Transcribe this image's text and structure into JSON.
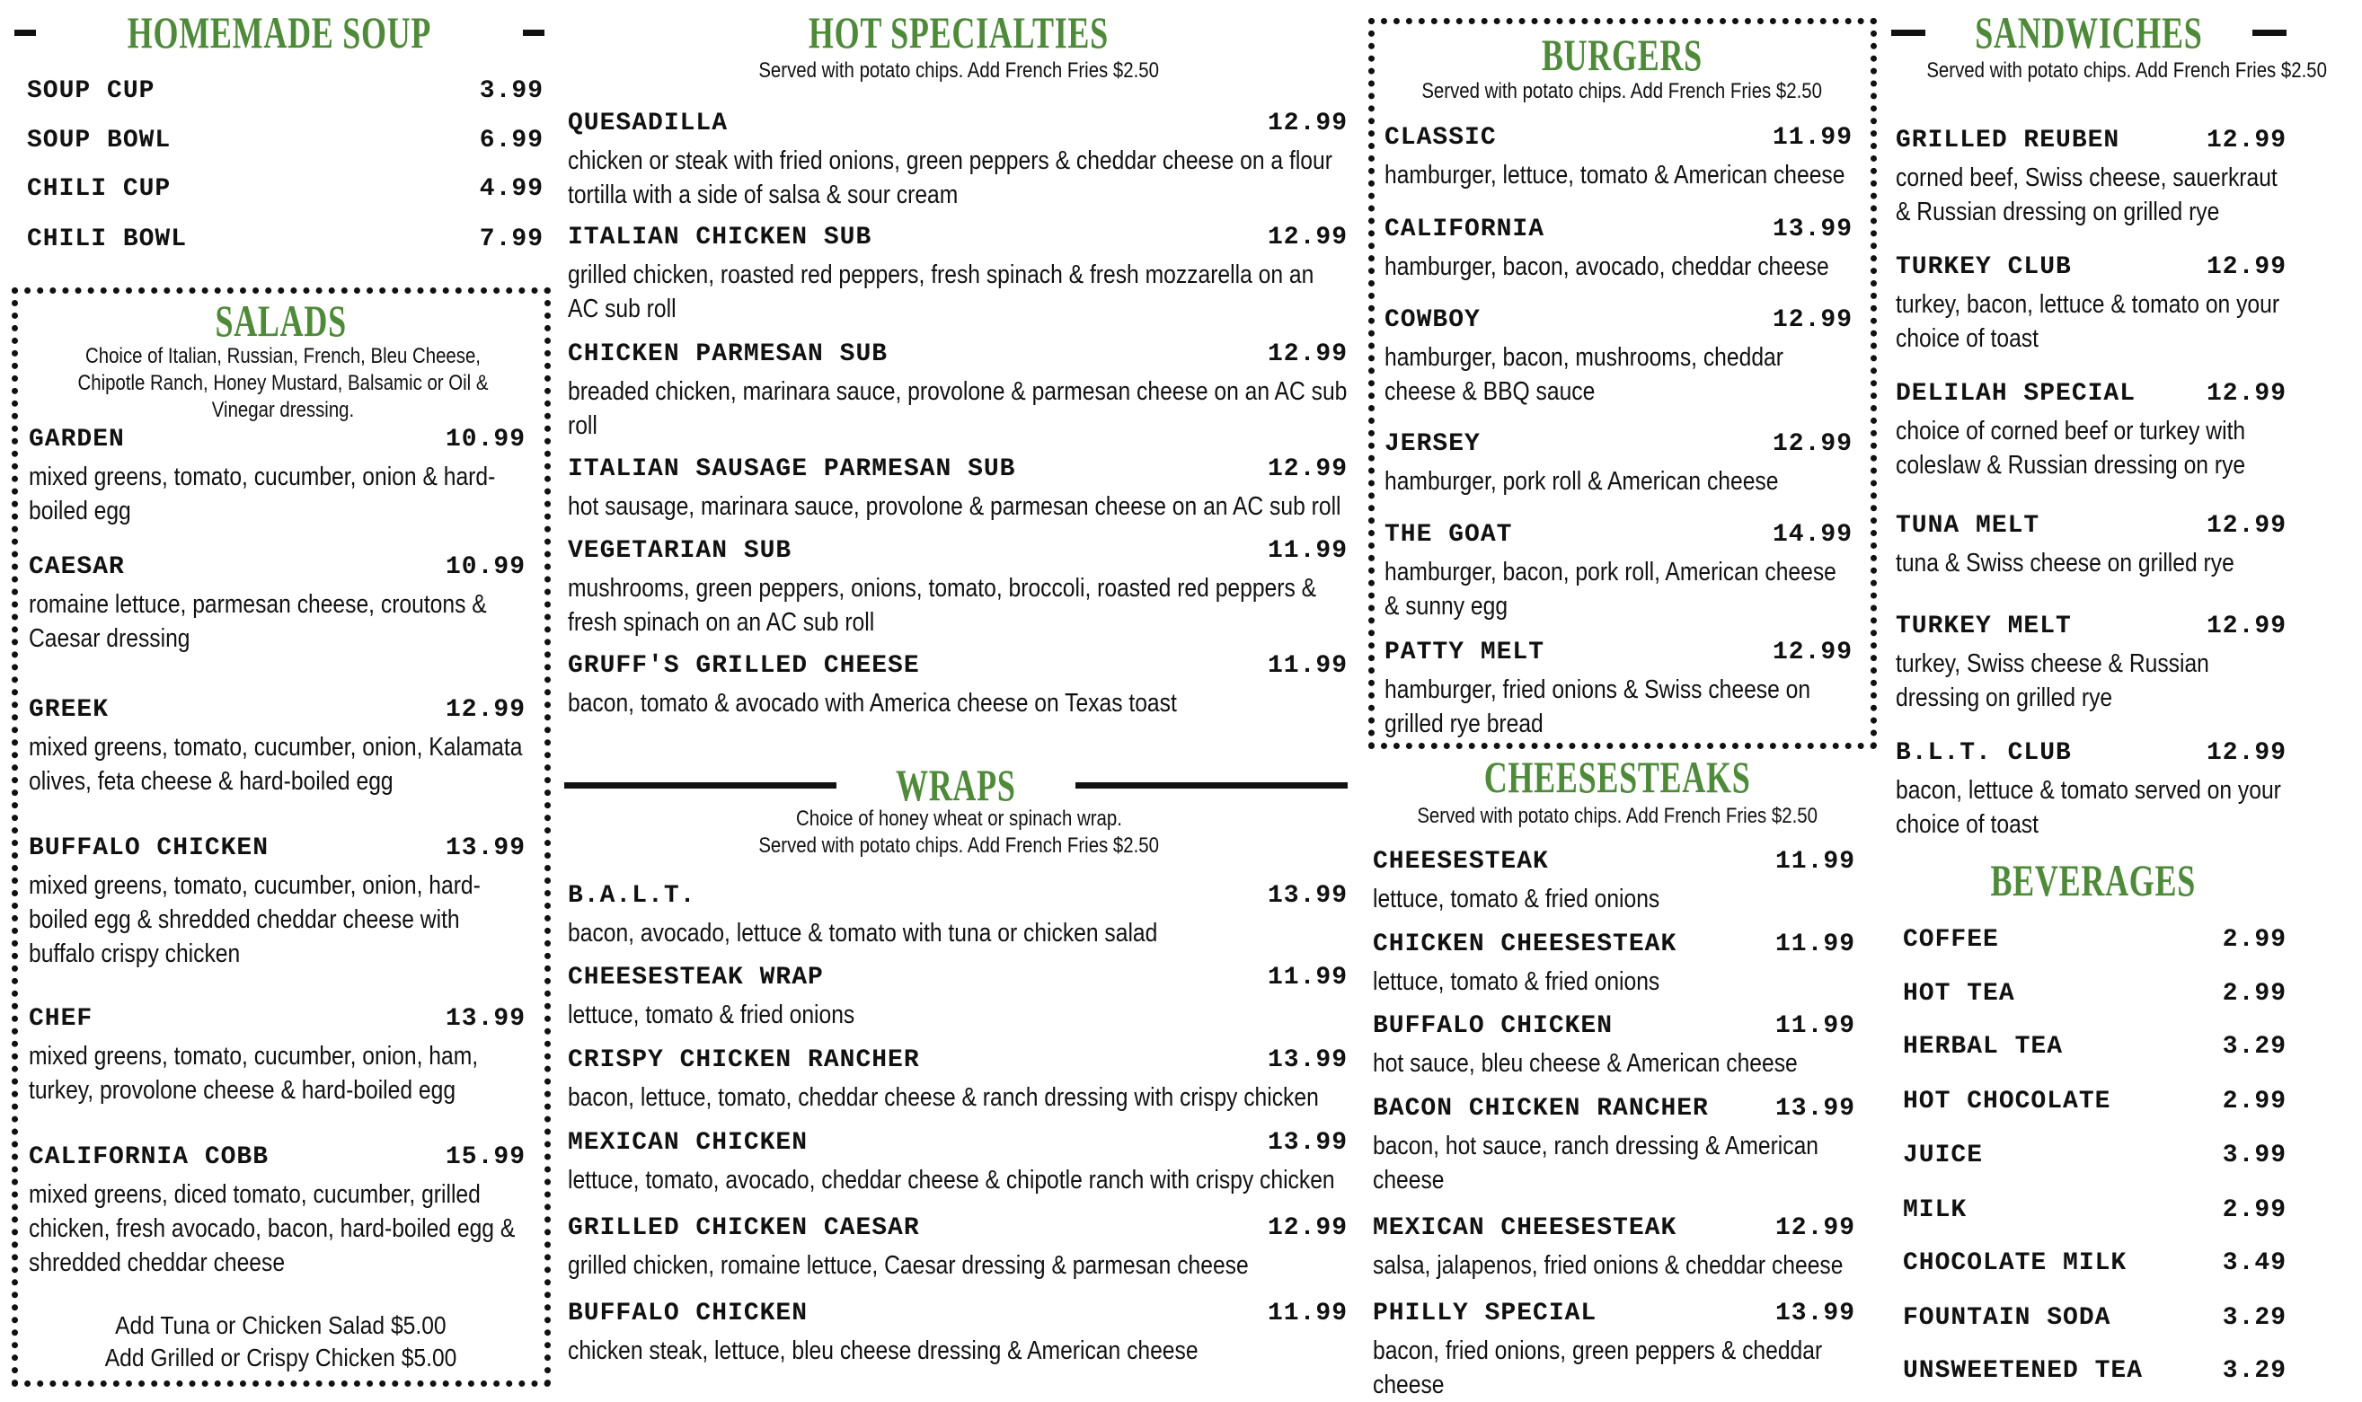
{
  "accent_color": "#4e8a3a",
  "sections": {
    "soup": {
      "title": "HOMEMADE SOUP",
      "items": [
        {
          "name": "SOUP CUP",
          "price": "3.99"
        },
        {
          "name": "SOUP BOWL",
          "price": "6.99"
        },
        {
          "name": "CHILI CUP",
          "price": "4.99"
        },
        {
          "name": "CHILI BOWL",
          "price": "7.99"
        }
      ]
    },
    "salads": {
      "title": "SALADS",
      "note": "Choice of Italian, Russian, French, Bleu Cheese, Chipotle Ranch, Honey Mustard, Balsamic or Oil & Vinegar dressing.",
      "items": [
        {
          "name": "GARDEN",
          "price": "10.99",
          "desc": "mixed greens, tomato, cucumber, onion & hard-boiled egg"
        },
        {
          "name": "CAESAR",
          "price": "10.99",
          "desc": "romaine lettuce, parmesan cheese, croutons & Caesar dressing"
        },
        {
          "name": "GREEK",
          "price": "12.99",
          "desc": "mixed greens, tomato, cucumber, onion, Kalamata olives, feta cheese & hard-boiled egg"
        },
        {
          "name": "BUFFALO CHICKEN",
          "price": "13.99",
          "desc": "mixed greens, tomato, cucumber, onion, hard-boiled egg & shredded cheddar cheese with buffalo crispy chicken"
        },
        {
          "name": "CHEF",
          "price": "13.99",
          "desc": "mixed greens, tomato, cucumber, onion, ham, turkey, provolone cheese & hard-boiled egg"
        },
        {
          "name": "CALIFORNIA COBB",
          "price": "15.99",
          "desc": "mixed greens, diced tomato, cucumber, grilled chicken, fresh avocado, bacon, hard-boiled egg & shredded cheddar cheese"
        }
      ],
      "addons": [
        "Add Tuna or Chicken Salad $5.00",
        "Add Grilled or Crispy Chicken $5.00"
      ]
    },
    "hot": {
      "title": "HOT SPECIALTIES",
      "note": "Served with potato chips. Add French Fries $2.50",
      "items": [
        {
          "name": "QUESADILLA",
          "price": "12.99",
          "desc": "chicken or steak with fried onions, green peppers & cheddar cheese on a flour tortilla with a side of salsa & sour cream"
        },
        {
          "name": "ITALIAN CHICKEN SUB",
          "price": "12.99",
          "desc": "grilled chicken, roasted red peppers, fresh spinach & fresh mozzarella on an AC sub roll"
        },
        {
          "name": "CHICKEN PARMESAN SUB",
          "price": "12.99",
          "desc": "breaded chicken, marinara sauce, provolone & parmesan cheese on an AC sub roll"
        },
        {
          "name": "ITALIAN SAUSAGE PARMESAN SUB",
          "price": "12.99",
          "desc": "hot sausage, marinara sauce, provolone & parmesan cheese on an AC sub roll"
        },
        {
          "name": "VEGETARIAN SUB",
          "price": "11.99",
          "desc": "mushrooms, green peppers, onions, tomato, broccoli, roasted red peppers & fresh spinach on an AC sub roll"
        },
        {
          "name": "GRUFF'S GRILLED CHEESE",
          "price": "11.99",
          "desc": "bacon, tomato & avocado with America cheese on Texas toast"
        }
      ]
    },
    "wraps": {
      "title": "WRAPS",
      "note": [
        "Choice of honey wheat or spinach wrap.",
        "Served with potato chips. Add French Fries $2.50"
      ],
      "items": [
        {
          "name": "B.A.L.T.",
          "price": "13.99",
          "desc": "bacon, avocado, lettuce & tomato with tuna or chicken salad"
        },
        {
          "name": "CHEESESTEAK WRAP",
          "price": "11.99",
          "desc": "lettuce, tomato & fried onions"
        },
        {
          "name": "CRISPY CHICKEN RANCHER",
          "price": "13.99",
          "desc": "bacon, lettuce, tomato, cheddar cheese & ranch dressing with crispy chicken"
        },
        {
          "name": "MEXICAN CHICKEN",
          "price": "13.99",
          "desc": "lettuce, tomato, avocado, cheddar cheese & chipotle ranch with crispy chicken"
        },
        {
          "name": "GRILLED CHICKEN CAESAR",
          "price": "12.99",
          "desc": "grilled chicken, romaine lettuce, Caesar dressing & parmesan cheese"
        },
        {
          "name": "BUFFALO CHICKEN",
          "price": "11.99",
          "desc": "chicken steak, lettuce, bleu cheese dressing & American cheese"
        }
      ]
    },
    "burgers": {
      "title": "BURGERS",
      "note": "Served with potato chips. Add French Fries $2.50",
      "items": [
        {
          "name": "CLASSIC",
          "price": "11.99",
          "desc": "hamburger, lettuce, tomato & American cheese"
        },
        {
          "name": "CALIFORNIA",
          "price": "13.99",
          "desc": "hamburger, bacon, avocado, cheddar cheese"
        },
        {
          "name": "COWBOY",
          "price": "12.99",
          "desc": "hamburger, bacon, mushrooms, cheddar cheese & BBQ sauce"
        },
        {
          "name": "JERSEY",
          "price": "12.99",
          "desc": "hamburger, pork roll & American cheese"
        },
        {
          "name": "THE GOAT",
          "price": "14.99",
          "desc": "hamburger, bacon, pork roll, American cheese & sunny egg"
        },
        {
          "name": "PATTY MELT",
          "price": "12.99",
          "desc": "hamburger, fried onions & Swiss cheese on grilled rye bread"
        }
      ]
    },
    "cheesesteaks": {
      "title": "CHEESESTEAKS",
      "note": "Served with potato chips. Add French Fries $2.50",
      "items": [
        {
          "name": "CHEESESTEAK",
          "price": "11.99",
          "desc": "lettuce, tomato & fried onions"
        },
        {
          "name": "CHICKEN CHEESESTEAK",
          "price": "11.99",
          "desc": "lettuce, tomato & fried onions"
        },
        {
          "name": "BUFFALO CHICKEN",
          "price": "11.99",
          "desc": "hot sauce, bleu cheese & American cheese"
        },
        {
          "name": "BACON CHICKEN RANCHER",
          "price": "13.99",
          "desc": "bacon, hot sauce, ranch dressing & American cheese"
        },
        {
          "name": "MEXICAN CHEESESTEAK",
          "price": "12.99",
          "desc": "salsa, jalapenos, fried onions & cheddar cheese"
        },
        {
          "name": "PHILLY SPECIAL",
          "price": "13.99",
          "desc": "bacon, fried onions, green peppers & cheddar cheese"
        }
      ]
    },
    "sandwiches": {
      "title": "SANDWICHES",
      "note": "Served with potato chips. Add French Fries $2.50",
      "items": [
        {
          "name": "GRILLED REUBEN",
          "price": "12.99",
          "desc": "corned beef, Swiss cheese, sauerkraut & Russian dressing on grilled rye"
        },
        {
          "name": "TURKEY CLUB",
          "price": "12.99",
          "desc": "turkey, bacon, lettuce & tomato on your choice of toast"
        },
        {
          "name": "DELILAH SPECIAL",
          "price": "12.99",
          "desc": "choice of corned beef or turkey with coleslaw & Russian dressing on rye"
        },
        {
          "name": "TUNA MELT",
          "price": "12.99",
          "desc": "tuna & Swiss cheese on grilled rye"
        },
        {
          "name": "TURKEY MELT",
          "price": "12.99",
          "desc": "turkey, Swiss cheese & Russian dressing on grilled rye"
        },
        {
          "name": "B.L.T. CLUB",
          "price": "12.99",
          "desc": "bacon, lettuce & tomato served on your choice of toast"
        }
      ]
    },
    "beverages": {
      "title": "BEVERAGES",
      "items": [
        {
          "name": "COFFEE",
          "price": "2.99"
        },
        {
          "name": "HOT TEA",
          "price": "2.99"
        },
        {
          "name": "HERBAL TEA",
          "price": "3.29"
        },
        {
          "name": "HOT CHOCOLATE",
          "price": "2.99"
        },
        {
          "name": "JUICE",
          "price": "3.99"
        },
        {
          "name": "MILK",
          "price": "2.99"
        },
        {
          "name": "CHOCOLATE MILK",
          "price": "3.49"
        },
        {
          "name": "FOUNTAIN SODA",
          "price": "3.29"
        },
        {
          "name": "UNSWEETENED TEA",
          "price": "3.29"
        }
      ]
    }
  }
}
